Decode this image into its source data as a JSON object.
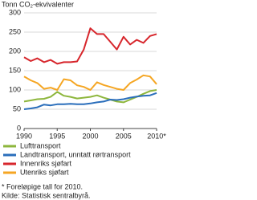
{
  "chart_data": {
    "type": "line",
    "title": "Tonn CO₂-ekvivalenter",
    "x": [
      1990,
      1991,
      1992,
      1993,
      1994,
      1995,
      1996,
      1997,
      1998,
      1999,
      2000,
      2001,
      2002,
      2003,
      2004,
      2005,
      2006,
      2007,
      2008,
      2009,
      2010
    ],
    "series": [
      {
        "name": "Lufttransport",
        "color": "#8db63c",
        "values": [
          70,
          73,
          76,
          77,
          82,
          95,
          85,
          82,
          78,
          80,
          82,
          86,
          80,
          75,
          70,
          68,
          75,
          82,
          90,
          97,
          100
        ]
      },
      {
        "name": "Landtransport, unntatt rørtransport",
        "color": "#2a6ebb",
        "values": [
          50,
          52,
          55,
          62,
          60,
          63,
          63,
          64,
          63,
          63,
          65,
          68,
          70,
          75,
          74,
          76,
          80,
          83,
          85,
          86,
          92
        ]
      },
      {
        "name": "Innenriks sjøfart",
        "color": "#d7262c",
        "values": [
          185,
          175,
          182,
          172,
          178,
          168,
          172,
          172,
          174,
          205,
          260,
          245,
          245,
          225,
          205,
          238,
          218,
          230,
          222,
          240,
          245
        ]
      },
      {
        "name": "Utenriks sjøfart",
        "color": "#f5a623",
        "values": [
          135,
          125,
          118,
          103,
          106,
          100,
          128,
          125,
          112,
          108,
          100,
          120,
          113,
          108,
          103,
          100,
          118,
          127,
          138,
          135,
          115
        ]
      }
    ],
    "xlim": [
      1990,
      2010
    ],
    "xticks": [
      1990,
      1995,
      2000,
      2005,
      {
        "value": 2010,
        "label": "2010*"
      }
    ],
    "ylim": [
      0,
      300
    ],
    "yticks": [
      0,
      50,
      100,
      150,
      200,
      250,
      300
    ],
    "grid": true,
    "footnote": "* Foreløpige tall for 2010.",
    "source": "Kilde: Statistisk sentralbyrå."
  }
}
